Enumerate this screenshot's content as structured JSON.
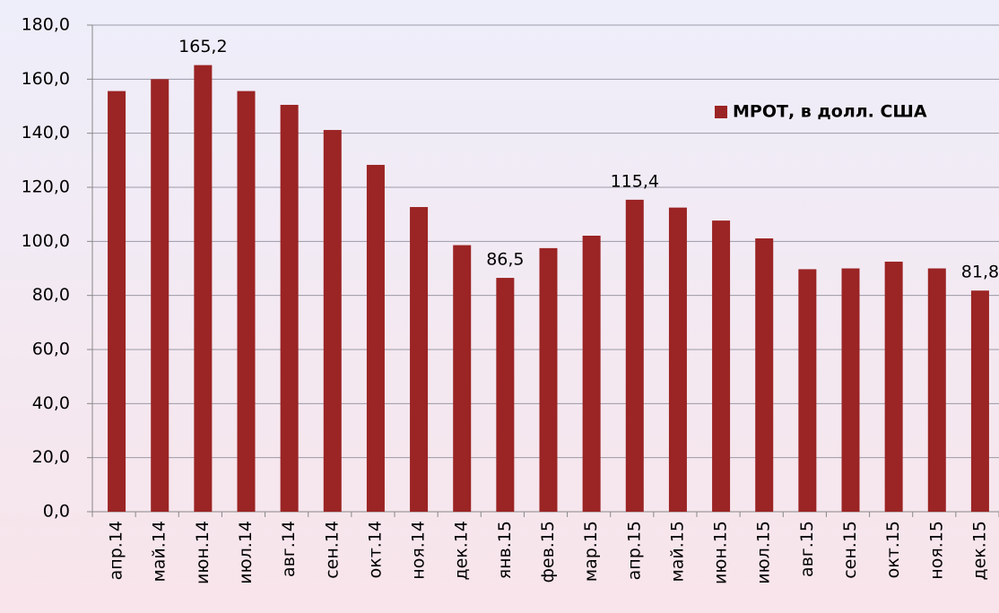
{
  "chart_data": {
    "type": "bar",
    "categories": [
      "апр.14",
      "май.14",
      "июн.14",
      "июл.14",
      "авг.14",
      "сен.14",
      "окт.14",
      "ноя.14",
      "дек.14",
      "янв.15",
      "фев.15",
      "мар.15",
      "апр.15",
      "май.15",
      "июн.15",
      "июл.15",
      "авг.15",
      "сен.15",
      "окт.15",
      "ноя.15",
      "дек.15"
    ],
    "series": [
      {
        "name": "МРОТ, в долл. США",
        "color": "#9b2424",
        "values": [
          155.6,
          160,
          165.2,
          155.6,
          150.5,
          141.2,
          128.3,
          112.7,
          98.6,
          86.5,
          97.5,
          102.1,
          115.4,
          112.5,
          107.7,
          101.1,
          89.7,
          90,
          92.5,
          90,
          81.8
        ],
        "value_labels": [
          null,
          null,
          "165,2",
          null,
          null,
          null,
          null,
          null,
          null,
          "86,5",
          null,
          null,
          "115,4",
          null,
          null,
          null,
          null,
          null,
          null,
          null,
          "81,8"
        ]
      }
    ],
    "ylim": [
      0,
      180
    ],
    "yticks": [
      {
        "value": 0,
        "label": "0,0"
      },
      {
        "value": 20,
        "label": "20,0"
      },
      {
        "value": 40,
        "label": "40,0"
      },
      {
        "value": 60,
        "label": "60,0"
      },
      {
        "value": 80,
        "label": "80,0"
      },
      {
        "value": 100,
        "label": "100,0"
      },
      {
        "value": 120,
        "label": "120,0"
      },
      {
        "value": 140,
        "label": "140,0"
      },
      {
        "value": 160,
        "label": "160,0"
      },
      {
        "value": 180,
        "label": "180,0"
      }
    ],
    "grid": true,
    "legend": "top-right"
  }
}
